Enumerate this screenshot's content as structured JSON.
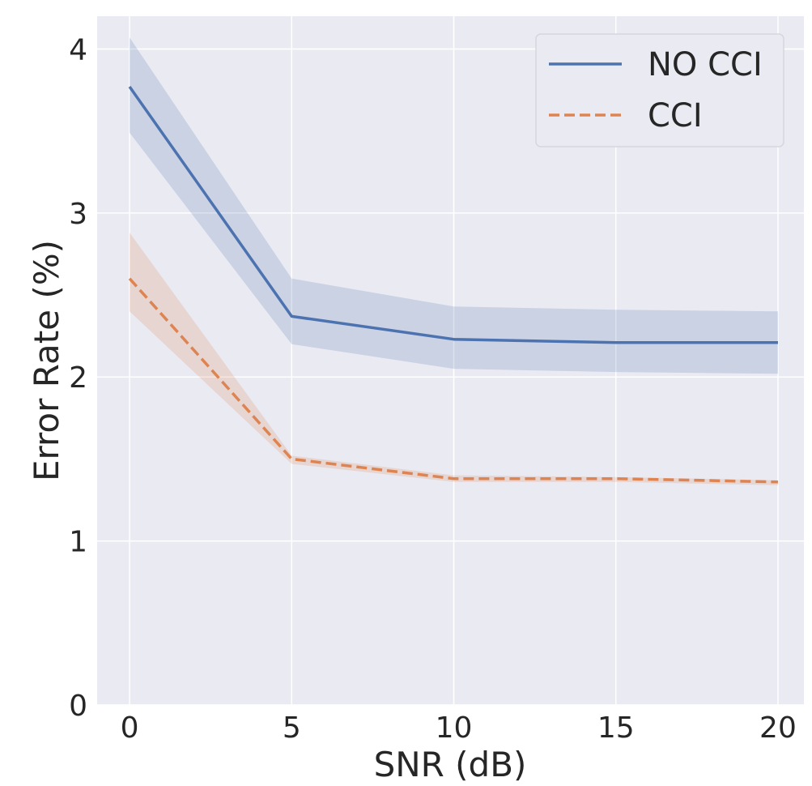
{
  "chart_data": {
    "type": "line",
    "title": "",
    "xlabel": "SNR (dB)",
    "ylabel": "Error Rate (%)",
    "x": [
      0,
      5,
      10,
      15,
      20
    ],
    "xlim": [
      -1,
      20.8
    ],
    "ylim": [
      0,
      4.2
    ],
    "xticks": [
      0,
      5,
      10,
      15,
      20
    ],
    "yticks": [
      0,
      1,
      2,
      3,
      4
    ],
    "grid": true,
    "legend_position": "top-right",
    "background": "#eaeaf2",
    "series": [
      {
        "name": "NO CCI",
        "style": "solid",
        "color": "#4c72b0",
        "values": [
          3.77,
          2.37,
          2.23,
          2.21,
          2.21
        ],
        "band_low": [
          3.49,
          2.2,
          2.05,
          2.03,
          2.02
        ],
        "band_high": [
          4.07,
          2.6,
          2.43,
          2.41,
          2.4
        ]
      },
      {
        "name": "CCI",
        "style": "dashed",
        "color": "#dd8452",
        "values": [
          2.6,
          1.5,
          1.38,
          1.38,
          1.36
        ],
        "band_low": [
          2.4,
          1.47,
          1.36,
          1.36,
          1.34
        ],
        "band_high": [
          2.88,
          1.52,
          1.4,
          1.39,
          1.37
        ]
      }
    ]
  }
}
